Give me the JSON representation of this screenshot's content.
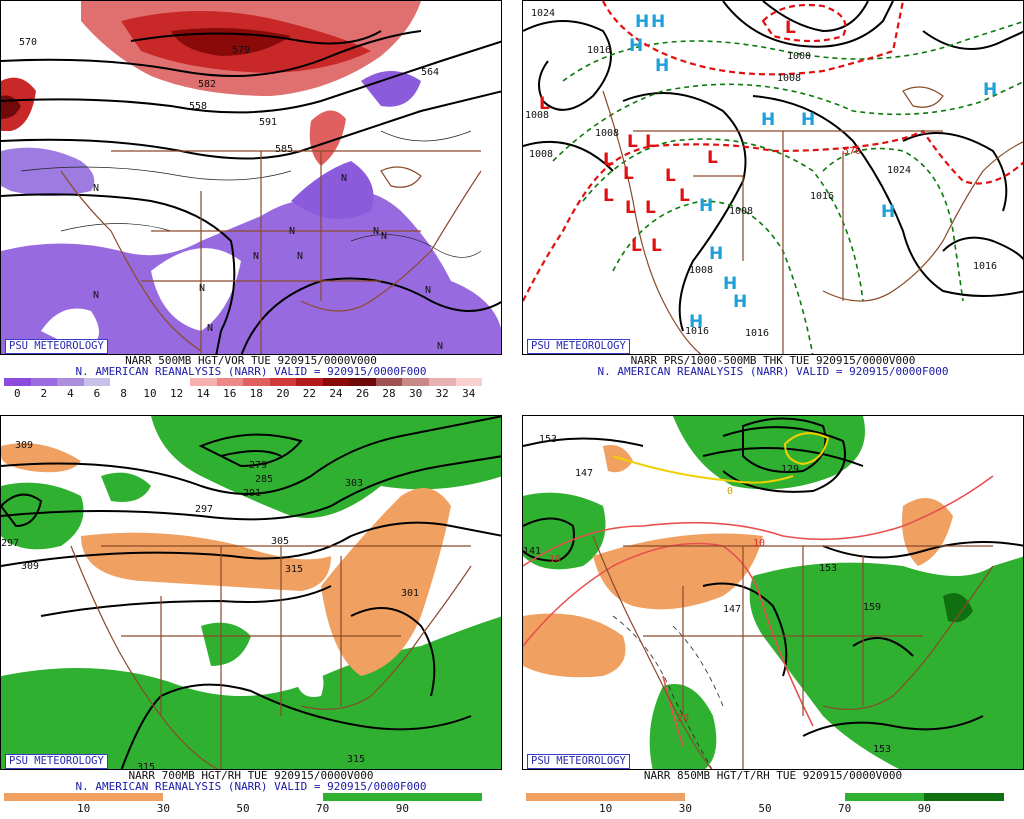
{
  "logo": "PSU METEOROLOGY",
  "panels": [
    {
      "id": "p1",
      "title": "NARR 500MB HGT/VOR TUE 920915/0000V000",
      "subtitle": "N. AMERICAN REANALYSIS (NARR) VALID = 920915/0000F000",
      "colorbar": {
        "colors": [
          "#8c4bdc",
          "#9d6be0",
          "#a98fdc",
          "#c8c0e8",
          "#ffffff",
          "#ffffff",
          "#ffffff",
          "#f7b0b0",
          "#ee8888",
          "#e06060",
          "#d03a3a",
          "#b51a1a",
          "#8a0a0a",
          "#700a0a",
          "#a05050",
          "#c88888",
          "#e8b0b0",
          "#f8d0d0"
        ],
        "ticks": [
          "0",
          "2",
          "4",
          "6",
          "8",
          "10",
          "12",
          "14",
          "16",
          "18",
          "20",
          "22",
          "24",
          "26",
          "28",
          "30",
          "32",
          "34"
        ]
      },
      "contour_labels": [
        "570",
        "579",
        "582",
        "558",
        "585",
        "591",
        "564"
      ],
      "markers": [
        "N",
        "N",
        "N",
        "N",
        "N",
        "N",
        "N",
        "N",
        "N",
        "N",
        "N",
        "N"
      ]
    },
    {
      "id": "p2",
      "title": "NARR PRS/1000-500MB THK TUE 920915/0000V000",
      "subtitle": "N. AMERICAN REANALYSIS (NARR) VALID = 920915/0000F000",
      "colorbar": null,
      "contour_labels": [
        "1024",
        "1016",
        "1000",
        "1008",
        "1008",
        "1008",
        "1008",
        "1016",
        "1016",
        "1024",
        "1008",
        "1008",
        "570",
        "1016",
        "1016"
      ],
      "highs": [
        "H",
        "H",
        "H",
        "H",
        "H",
        "H",
        "H",
        "H",
        "H",
        "H",
        "H",
        "H",
        "H"
      ],
      "lows": [
        "L",
        "L",
        "L",
        "L",
        "L",
        "L",
        "L",
        "L",
        "L",
        "L",
        "L",
        "L",
        "L",
        "L"
      ]
    },
    {
      "id": "p3",
      "title": "NARR 700MB HGT/RH TUE 920915/0000V000",
      "subtitle": "N. AMERICAN REANALYSIS (NARR) VALID = 920915/0000F000",
      "colorbar": {
        "colors": [
          "#f0a060",
          "#f0a060",
          "#ffffff",
          "#ffffff",
          "#30b030",
          "#30b030"
        ],
        "ticks": [
          "10",
          "30",
          "50",
          "70",
          "90"
        ]
      },
      "contour_labels": [
        "309",
        "279",
        "285",
        "291",
        "297",
        "303",
        "297",
        "309",
        "305",
        "315",
        "301",
        "315",
        "315"
      ]
    },
    {
      "id": "p4",
      "title": "NARR 850MB HGT/T/RH TUE 920915/0000V000",
      "subtitle": "",
      "colorbar": {
        "colors": [
          "#f0a060",
          "#f0a060",
          "#ffffff",
          "#ffffff",
          "#30b030",
          "#107010"
        ],
        "ticks": [
          "10",
          "30",
          "50",
          "70",
          "90"
        ]
      },
      "contour_labels": [
        "153",
        "147",
        "129",
        "141",
        "153",
        "147",
        "159",
        "153",
        "0",
        "10",
        "10",
        "20"
      ]
    }
  ]
}
